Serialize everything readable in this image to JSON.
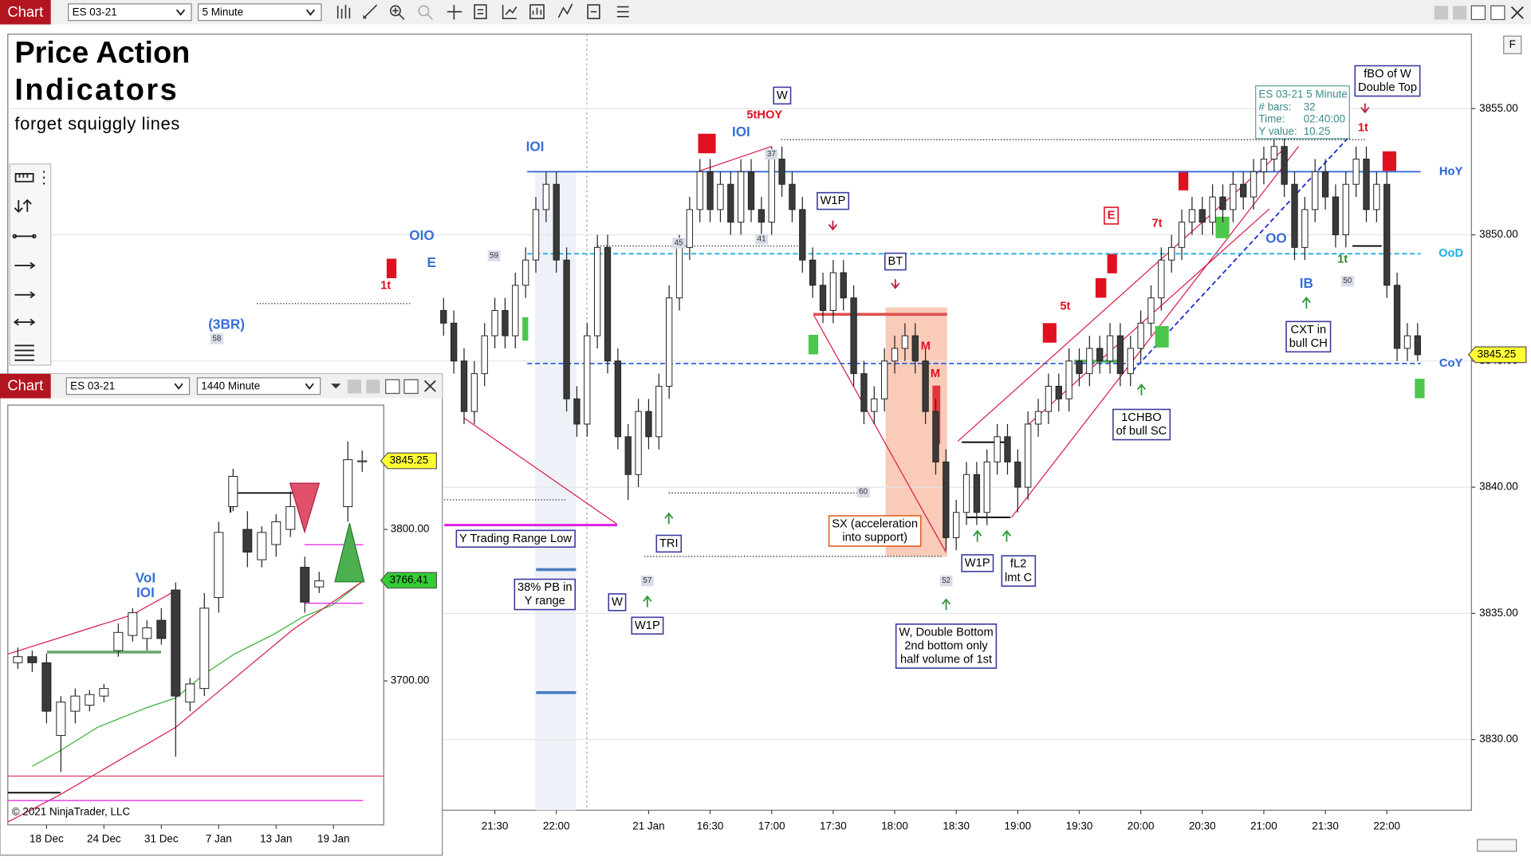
{
  "window": {
    "main": {
      "title": "Chart",
      "instrument": "ES 03-21",
      "interval": "5 Minute"
    },
    "inset": {
      "title": "Chart",
      "instrument": "ES 03-21",
      "interval": "1440 Minute"
    },
    "side_button": "F"
  },
  "chart_data": [
    {
      "type": "candlestick",
      "xlim": [
        -42.5,
        100.25
      ],
      "xticks": [
        {
          "value": 5,
          "label": "21:30"
        },
        {
          "value": 11,
          "label": "22:00"
        },
        {
          "value": 20,
          "label": "21 Jan"
        },
        {
          "value": 26,
          "label": "16:30"
        },
        {
          "value": 32,
          "label": "17:00"
        },
        {
          "value": 38,
          "label": "17:30"
        },
        {
          "value": 44,
          "label": "18:00"
        },
        {
          "value": 50,
          "label": "18:30"
        },
        {
          "value": 56,
          "label": "19:00"
        },
        {
          "value": 62,
          "label": "19:30"
        },
        {
          "value": 68,
          "label": "20:00"
        },
        {
          "value": 74,
          "label": "20:30"
        },
        {
          "value": 80,
          "label": "21:00"
        },
        {
          "value": 86,
          "label": "21:30"
        },
        {
          "value": 92,
          "label": "22:00"
        }
      ],
      "ylim": [
        3827.2,
        3857.95
      ],
      "yticks": [
        {
          "value": 3830,
          "label": "3830.00"
        },
        {
          "value": 3835,
          "label": "3835.00"
        },
        {
          "value": 3840,
          "label": "3840.00"
        },
        {
          "value": 3845,
          "label": "3845.00"
        },
        {
          "value": 3850,
          "label": "3850.00"
        },
        {
          "value": 3855,
          "label": "3855.00"
        }
      ],
      "grid": true,
      "up_color": "#ffffff",
      "down_color": "#3a3a3a",
      "candles": [
        [
          3847,
          3847.5,
          3846,
          3846.5
        ],
        [
          3846.5,
          3847,
          3844.5,
          3845
        ],
        [
          3845,
          3845.5,
          3842.5,
          3843
        ],
        [
          3843,
          3845,
          3842.5,
          3844.5
        ],
        [
          3844.5,
          3846.5,
          3844,
          3846
        ],
        [
          3846,
          3847.5,
          3845.5,
          3847
        ],
        [
          3847,
          3847.5,
          3845.5,
          3846
        ],
        [
          3846,
          3848.5,
          3845.5,
          3848
        ],
        [
          3848,
          3849.5,
          3847.5,
          3849
        ],
        [
          3849,
          3851.5,
          3848.5,
          3851
        ],
        [
          3851,
          3852.5,
          3850.5,
          3852
        ],
        [
          3852,
          3852.5,
          3848.5,
          3849
        ],
        [
          3849,
          3849.5,
          3843,
          3843.5
        ],
        [
          3843.5,
          3844,
          3842,
          3842.5
        ],
        [
          3842.5,
          3846.5,
          3842,
          3846
        ],
        [
          3846,
          3850,
          3845.5,
          3849.5
        ],
        [
          3849.5,
          3850,
          3844.5,
          3845
        ],
        [
          3845,
          3845.5,
          3841.5,
          3842
        ],
        [
          3842,
          3842.5,
          3839.5,
          3840.5
        ],
        [
          3840.5,
          3843.5,
          3840,
          3843
        ],
        [
          3843,
          3843.5,
          3841.5,
          3842
        ],
        [
          3842,
          3844.5,
          3841.5,
          3844
        ],
        [
          3844,
          3848,
          3843.5,
          3847.5
        ],
        [
          3847.5,
          3850,
          3847,
          3849.5
        ],
        [
          3849.5,
          3851.5,
          3849,
          3851
        ],
        [
          3851,
          3853,
          3850.5,
          3852.5
        ],
        [
          3852.5,
          3853,
          3850.5,
          3851
        ],
        [
          3851,
          3852.5,
          3850.5,
          3852
        ],
        [
          3852,
          3852.5,
          3850,
          3850.5
        ],
        [
          3850.5,
          3853,
          3850,
          3852.5
        ],
        [
          3852.5,
          3853,
          3850.5,
          3851
        ],
        [
          3851,
          3851.5,
          3850,
          3850.5
        ],
        [
          3850.5,
          3853.5,
          3850,
          3853
        ],
        [
          3853,
          3853.5,
          3851.5,
          3852
        ],
        [
          3852,
          3852.5,
          3850.5,
          3851
        ],
        [
          3851,
          3851.5,
          3848.5,
          3849
        ],
        [
          3849,
          3849.5,
          3847.5,
          3848
        ],
        [
          3848,
          3848.5,
          3846.5,
          3847
        ],
        [
          3847,
          3849,
          3846.5,
          3848.5
        ],
        [
          3848.5,
          3849,
          3847,
          3847.5
        ],
        [
          3847.5,
          3848,
          3844,
          3844.5
        ],
        [
          3844.5,
          3845,
          3842.5,
          3843
        ],
        [
          3843,
          3844,
          3842.5,
          3843.5
        ],
        [
          3843.5,
          3845.5,
          3843,
          3845
        ],
        [
          3845,
          3846,
          3844.5,
          3845.5
        ],
        [
          3845.5,
          3846.5,
          3845,
          3846
        ],
        [
          3846,
          3846.5,
          3844.5,
          3845
        ],
        [
          3845,
          3845.5,
          3842.5,
          3843
        ],
        [
          3843,
          3843.5,
          3840.5,
          3841
        ],
        [
          3841,
          3841.5,
          3837.5,
          3838
        ],
        [
          3838,
          3839.5,
          3837.5,
          3839
        ],
        [
          3839,
          3841,
          3838.5,
          3840.5
        ],
        [
          3840.5,
          3841,
          3838.5,
          3839
        ],
        [
          3839,
          3841.5,
          3838.5,
          3841
        ],
        [
          3841,
          3842.5,
          3840.5,
          3842
        ],
        [
          3842,
          3842.5,
          3840.5,
          3841
        ],
        [
          3841,
          3841.5,
          3839,
          3840
        ],
        [
          3840,
          3843,
          3839.5,
          3842.5
        ],
        [
          3842.5,
          3843.5,
          3842,
          3843
        ],
        [
          3843,
          3844.5,
          3842.5,
          3844
        ],
        [
          3844,
          3844.5,
          3843,
          3843.5
        ],
        [
          3843.5,
          3845.5,
          3843,
          3845
        ],
        [
          3845,
          3845.5,
          3844,
          3844.5
        ],
        [
          3844.5,
          3846,
          3844,
          3845.5
        ],
        [
          3845.5,
          3846,
          3844.5,
          3845
        ],
        [
          3845,
          3846.5,
          3844.5,
          3846
        ],
        [
          3846,
          3846.5,
          3844,
          3844.5
        ],
        [
          3844.5,
          3846,
          3844,
          3845.5
        ],
        [
          3845.5,
          3847,
          3845,
          3846.5
        ],
        [
          3846.5,
          3848,
          3846,
          3847.5
        ],
        [
          3847.5,
          3849.5,
          3847,
          3849
        ],
        [
          3849,
          3850,
          3848.5,
          3849.5
        ],
        [
          3849.5,
          3851,
          3849,
          3850.5
        ],
        [
          3850.5,
          3851.5,
          3850,
          3851
        ],
        [
          3851,
          3851.5,
          3850,
          3850.5
        ],
        [
          3850.5,
          3852,
          3850,
          3851.5
        ],
        [
          3851.5,
          3852,
          3850.5,
          3851
        ],
        [
          3851,
          3852.5,
          3850.5,
          3852
        ],
        [
          3852,
          3852.5,
          3851,
          3851.5
        ],
        [
          3851.5,
          3853,
          3851,
          3852.5
        ],
        [
          3852.5,
          3853.5,
          3852,
          3853
        ],
        [
          3853,
          3854,
          3852.5,
          3853.5
        ],
        [
          3853.5,
          3854,
          3851.5,
          3852
        ],
        [
          3852,
          3852.5,
          3849,
          3849.5
        ],
        [
          3849.5,
          3851.5,
          3849,
          3851
        ],
        [
          3851,
          3853,
          3850.5,
          3852.5
        ],
        [
          3852.5,
          3853,
          3851,
          3851.5
        ],
        [
          3851.5,
          3852,
          3849.5,
          3850
        ],
        [
          3850,
          3852.5,
          3849.5,
          3852
        ],
        [
          3852,
          3853.5,
          3851.5,
          3853
        ],
        [
          3853,
          3853.5,
          3850.5,
          3851
        ],
        [
          3851,
          3852.5,
          3850.5,
          3852
        ],
        [
          3852,
          3852.5,
          3847.5,
          3848
        ],
        [
          3848,
          3848.5,
          3845,
          3845.5
        ],
        [
          3845.5,
          3846.5,
          3845,
          3846
        ],
        [
          3846,
          3846.5,
          3845,
          3845.25
        ]
      ],
      "levels": [
        {
          "name": "HoY",
          "value": 3852.5,
          "color": "#2962d8",
          "dash": false
        },
        {
          "name": "OoD",
          "value": 3849.25,
          "color": "#1ab0e8",
          "dash": true
        },
        {
          "name": "CoY",
          "value": 3844.9,
          "color": "#2962d8",
          "dash": true
        },
        {
          "value": 3838.5,
          "color": "#e020e0",
          "dash": false
        }
      ],
      "price_markers": [
        {
          "value": 3845.25,
          "color": "#ffff33"
        }
      ]
    },
    {
      "type": "candlestick",
      "x": [
        -2,
        -1,
        0,
        1,
        2,
        3,
        4,
        5,
        6,
        7,
        8,
        9,
        10,
        11,
        12,
        13,
        14,
        15,
        16,
        17,
        18,
        19,
        21,
        22
      ],
      "xlim": [
        -2.7,
        23.5
      ],
      "xticks": [
        {
          "value": 0,
          "label": "18 Dec"
        },
        {
          "value": 4,
          "label": "24 Dec"
        },
        {
          "value": 8,
          "label": "31 Dec"
        },
        {
          "value": 12,
          "label": "7 Jan"
        },
        {
          "value": 16,
          "label": "13 Jan"
        },
        {
          "value": 20,
          "label": "19 Jan"
        }
      ],
      "ylim": [
        3605,
        3882
      ],
      "yticks": [
        {
          "value": 3700,
          "label": "3700.00"
        },
        {
          "value": 3800,
          "label": "3800.00"
        }
      ],
      "grid": false,
      "up_color": "#ffffff",
      "down_color": "#3a3a3a",
      "candles": [
        [
          3712,
          3722,
          3708,
          3716
        ],
        [
          3716,
          3720,
          3706,
          3712
        ],
        [
          3712,
          3718,
          3672,
          3680
        ],
        [
          3664,
          3690,
          3640,
          3686
        ],
        [
          3680,
          3695,
          3672,
          3690
        ],
        [
          3684,
          3694,
          3680,
          3691
        ],
        [
          3690,
          3698,
          3686,
          3695
        ],
        [
          3720,
          3738,
          3716,
          3732
        ],
        [
          3730,
          3748,
          3726,
          3745
        ],
        [
          3728,
          3740,
          3720,
          3735
        ],
        [
          3740,
          3748,
          3724,
          3728
        ],
        [
          3760,
          3765,
          3650,
          3690
        ],
        [
          3686,
          3702,
          3680,
          3698
        ],
        [
          3695,
          3758,
          3690,
          3748
        ],
        [
          3755,
          3805,
          3745,
          3798
        ],
        [
          3815,
          3840,
          3812,
          3835
        ],
        [
          3800,
          3812,
          3775,
          3785
        ],
        [
          3780,
          3802,
          3775,
          3798
        ],
        [
          3790,
          3810,
          3782,
          3805
        ],
        [
          3800,
          3825,
          3795,
          3815
        ],
        [
          3775,
          3782,
          3745,
          3752
        ],
        [
          3762,
          3772,
          3758,
          3766
        ],
        [
          3815,
          3858,
          3805,
          3846
        ],
        [
          3845,
          3852,
          3838,
          3845.25
        ]
      ],
      "price_markers": [
        {
          "value": 3845.25,
          "color": "#ffff33"
        },
        {
          "value": 3766.41,
          "color": "#33cc33"
        }
      ]
    }
  ],
  "annotations": [
    [
      "Price Action"
    ],
    [
      "Indicators"
    ],
    [
      "forget squiggly lines"
    ],
    [
      "(3BR)"
    ],
    [
      "OIO"
    ],
    [
      "E"
    ],
    [
      "1t"
    ],
    [
      "IOI"
    ],
    [
      "IOI"
    ],
    [
      "5tHOY"
    ],
    [
      "W"
    ],
    [
      "W1P"
    ],
    [
      "BT"
    ],
    [
      "SX (acceleration",
      "into support)"
    ],
    [
      "Y Trading Range Low"
    ],
    [
      "38% PB in",
      "Y range"
    ],
    [
      "TRI"
    ],
    [
      "W"
    ],
    [
      "W1P"
    ],
    [
      "W, Double Bottom",
      "2nd bottom only",
      "half volume of 1st"
    ],
    [
      "W1P"
    ],
    [
      "fL2",
      "lmt C"
    ],
    [
      "1CHBO",
      "of bull SC"
    ],
    [
      "CXT in",
      "bull CH"
    ],
    [
      "IB"
    ],
    [
      "OO"
    ],
    [
      "1t"
    ],
    [
      "fBO of W",
      "Double Top"
    ],
    [
      "1t"
    ],
    [
      "5t"
    ],
    [
      "7t"
    ],
    [
      "E"
    ],
    [
      "M"
    ],
    [
      "M"
    ],
    [
      "58"
    ],
    [
      "59"
    ],
    [
      "45"
    ],
    [
      "37"
    ],
    [
      "41"
    ],
    [
      "60"
    ],
    [
      "57"
    ],
    [
      "52"
    ],
    [
      "50"
    ],
    [
      "VoI",
      "IOI"
    ],
    [
      "© 2021 NinjaTrader, LLC"
    ]
  ],
  "info_box": {
    "title": "ES 03-21 5 Minute",
    "rows": [
      [
        "# bars:",
        "32"
      ],
      [
        "Time:",
        "02:40:00"
      ],
      [
        "Y value:",
        "10.25"
      ]
    ]
  }
}
